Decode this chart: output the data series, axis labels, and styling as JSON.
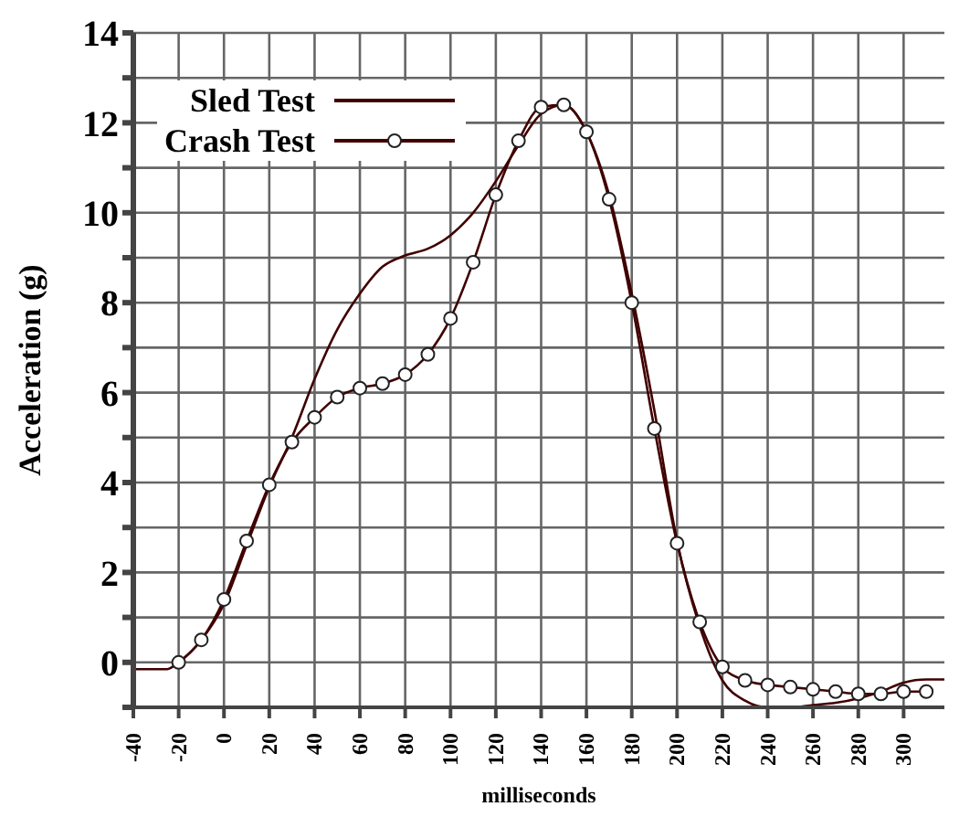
{
  "chart_data": {
    "type": "line",
    "xlabel": "milliseconds",
    "ylabel": "Acceleration  (g)",
    "xlim": [
      -40,
      318
    ],
    "xticks": [
      -40,
      -20,
      0,
      20,
      40,
      60,
      80,
      100,
      120,
      140,
      160,
      180,
      200,
      220,
      240,
      260,
      280,
      300
    ],
    "ylim": [
      -1,
      14
    ],
    "yticks": [
      {
        "value": -1,
        "label": null
      },
      0,
      {
        "value": 1,
        "label": null
      },
      2,
      {
        "value": 3,
        "label": null
      },
      4,
      {
        "value": 5,
        "label": null
      },
      6,
      {
        "value": 7,
        "label": null
      },
      8,
      {
        "value": 9,
        "label": null
      },
      10,
      {
        "value": 11,
        "label": null
      },
      12,
      {
        "value": 13,
        "label": null
      },
      14
    ],
    "grid": true,
    "legend": "top left",
    "line_style": "solid",
    "series": [
      {
        "name": "Sled Test",
        "color": "#400000",
        "marker": "none",
        "x": [
          -40,
          -25,
          -20,
          -10,
          0,
          10,
          20,
          30,
          40,
          50,
          60,
          70,
          80,
          90,
          100,
          110,
          120,
          130,
          140,
          150,
          160,
          170,
          180,
          190,
          200,
          210,
          220,
          230,
          240,
          250,
          260,
          270,
          280,
          290,
          300,
          310,
          318
        ],
        "values": [
          -0.15,
          -0.15,
          0,
          0.5,
          1.3,
          2.6,
          3.9,
          5.0,
          6.3,
          7.4,
          8.2,
          8.8,
          9.05,
          9.2,
          9.5,
          10.0,
          10.7,
          11.5,
          12.2,
          12.4,
          11.8,
          10.4,
          8.2,
          5.6,
          2.7,
          0.8,
          -0.4,
          -0.85,
          -1.0,
          -1.0,
          -0.95,
          -0.9,
          -0.8,
          -0.65,
          -0.45,
          -0.38,
          -0.38
        ]
      },
      {
        "name": "Crash Test",
        "color": "#400000",
        "marker": "circle",
        "x": [
          -20,
          -10,
          0,
          10,
          20,
          30,
          40,
          50,
          60,
          70,
          80,
          90,
          100,
          110,
          120,
          130,
          140,
          150,
          160,
          170,
          180,
          190,
          200,
          210,
          220,
          230,
          240,
          250,
          260,
          270,
          280,
          290,
          300,
          310
        ],
        "values": [
          0,
          0.5,
          1.4,
          2.7,
          3.95,
          4.9,
          5.45,
          5.9,
          6.1,
          6.2,
          6.4,
          6.85,
          7.65,
          8.9,
          10.4,
          11.6,
          12.35,
          12.4,
          11.8,
          10.3,
          8.0,
          5.2,
          2.65,
          0.9,
          -0.1,
          -0.4,
          -0.5,
          -0.55,
          -0.6,
          -0.65,
          -0.7,
          -0.7,
          -0.65,
          -0.65
        ]
      }
    ]
  }
}
